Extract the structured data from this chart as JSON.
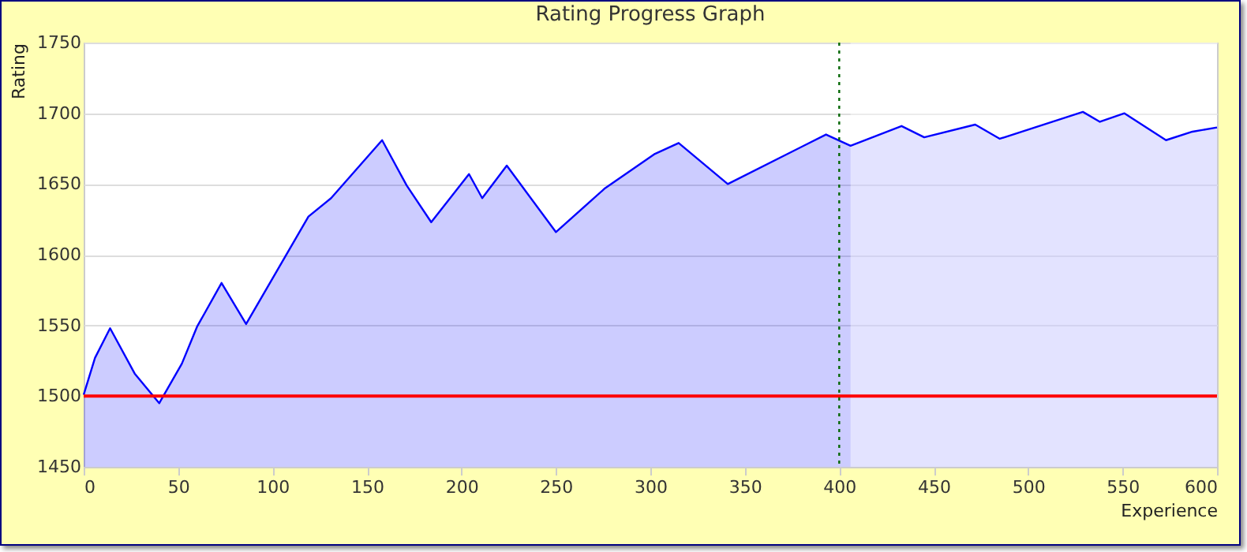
{
  "chart_data": {
    "type": "area",
    "title": "Rating Progress Graph",
    "xlabel": "Experience",
    "ylabel": "Rating",
    "x": [
      0,
      6,
      14,
      27,
      40,
      52,
      60,
      73,
      86,
      119,
      131,
      158,
      171,
      184,
      204,
      211,
      224,
      250,
      276,
      302,
      315,
      341,
      393,
      406,
      433,
      445,
      472,
      485,
      529,
      538,
      551,
      573,
      587,
      600
    ],
    "series": [
      {
        "color": "#0000ff",
        "values": [
          1501,
          1527,
          1548,
          1516,
          1495,
          1523,
          1549,
          1580,
          1551,
          1627,
          1640,
          1681,
          1649,
          1623,
          1657,
          1640,
          1663,
          1616,
          1647,
          1671,
          1679,
          1650,
          1685,
          1677,
          1691,
          1683,
          1692,
          1682,
          1701,
          1694,
          1700,
          1681,
          1687,
          1690
        ]
      }
    ],
    "xlim": [
      0,
      600
    ],
    "xticks": [
      0,
      50,
      100,
      150,
      200,
      250,
      300,
      350,
      400,
      450,
      500,
      550,
      600
    ],
    "ylim": [
      1450,
      1750
    ],
    "yticks": [
      1450,
      1500,
      1550,
      1600,
      1650,
      1700,
      1750
    ],
    "grid": "y",
    "legend": false,
    "ref_lines": [
      {
        "axis": "y",
        "value": 1500,
        "color": "#ff0000",
        "line_style": "solid"
      },
      {
        "axis": "x",
        "value": 400,
        "color": "#006600",
        "line_style": "dotted"
      }
    ],
    "bands": [
      {
        "axis": "x",
        "from": 406,
        "to": 600,
        "color": "#ffffff"
      }
    ]
  }
}
